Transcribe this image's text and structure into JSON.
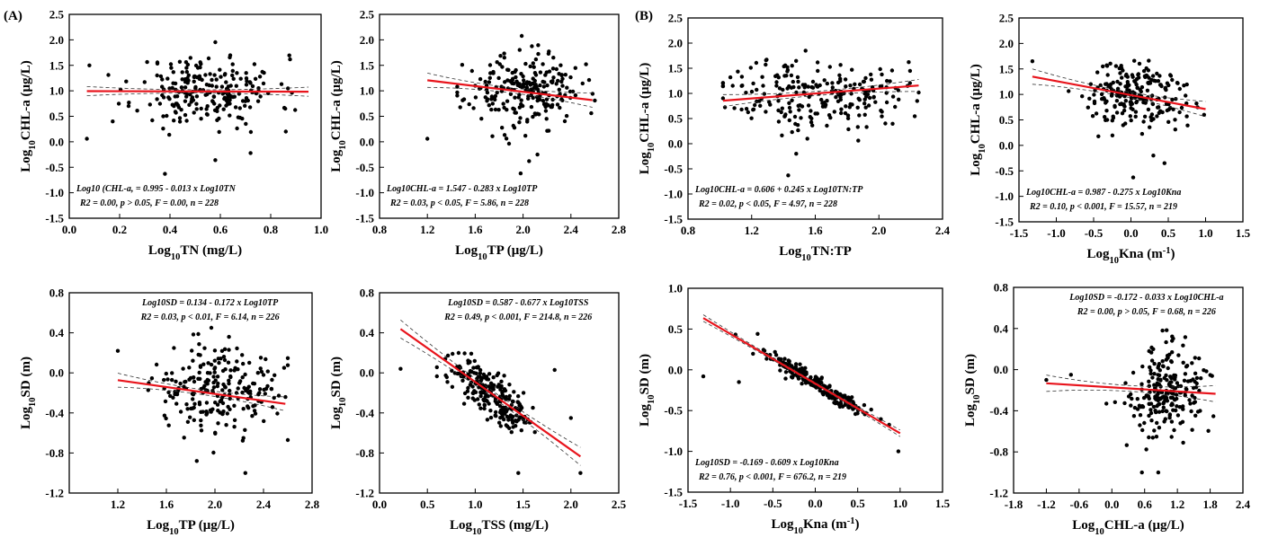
{
  "figure": {
    "panel_tags": [
      "(A)",
      "(B)"
    ]
  },
  "chart_data": [
    {
      "type": "scatter",
      "panel": "(A)",
      "title": "",
      "xlabel": "Log10TN (mg/L)",
      "xlabel_main": "Log",
      "xlabel_sub": "10",
      "xlabel_rest": "TN (mg/L)",
      "ylabel": "Log10CHL-a (μg/L)",
      "ylabel_main": "Log",
      "ylabel_sub": "10",
      "ylabel_rest": "CHL-a (μg/L)",
      "xlim": [
        0.0,
        1.0
      ],
      "ylim": [
        -1.5,
        2.5
      ],
      "xticks": [
        "0.0",
        "0.2",
        "0.4",
        "0.6",
        "0.8",
        "1.0"
      ],
      "yticks": [
        "-1.5",
        "-1.0",
        "-0.5",
        "0.0",
        "0.5",
        "1.0",
        "1.5",
        "2.0",
        "2.5"
      ],
      "x_center": 0.55,
      "x_spread": 0.14,
      "x_min": 0.07,
      "x_max": 0.95,
      "y_center": 1.0,
      "y_spread": 0.35,
      "n": 228,
      "seed": 11,
      "outliers": [
        [
          0.07,
          0.06
        ],
        [
          0.38,
          -0.63
        ],
        [
          0.58,
          -0.36
        ],
        [
          0.72,
          -0.22
        ],
        [
          0.08,
          1.5
        ],
        [
          0.86,
          0.2
        ]
      ],
      "fit": {
        "intercept": 0.995,
        "slope": -0.013,
        "x_range": [
          0.07,
          0.95
        ],
        "band": 0.09
      },
      "equation_line1": "Log10 (CHL-a, = 0.995 - 0.013 x Log10TN",
      "equation_line2": "R2 = 0.00, p > 0.05, F = 0.00, n = 228",
      "eq_pos": "bottom-left"
    },
    {
      "type": "scatter",
      "panel": "(A)",
      "title": "",
      "xlabel": "Log10TP (μg/L)",
      "xlabel_main": "Log",
      "xlabel_sub": "10",
      "xlabel_rest": "TP (μg/L)",
      "ylabel": "Log10CHL-a (μg/L)",
      "ylabel_main": "Log",
      "ylabel_sub": "10",
      "ylabel_rest": "CHL-a (μg/L)",
      "xlim": [
        0.8,
        2.8
      ],
      "ylim": [
        -1.5,
        2.5
      ],
      "xticks": [
        "0.8",
        "1.2",
        "1.6",
        "2.0",
        "2.4",
        "2.8"
      ],
      "yticks": [
        "-1.5",
        "-1.0",
        "-0.5",
        "0.0",
        "0.5",
        "1.0",
        "1.5",
        "2.0",
        "2.5"
      ],
      "x_center": 2.0,
      "x_spread": 0.24,
      "x_min": 1.45,
      "x_max": 2.6,
      "y_center": 1.0,
      "y_spread": 0.35,
      "n": 228,
      "seed": 23,
      "outliers": [
        [
          1.2,
          0.06
        ],
        [
          1.98,
          -0.62
        ],
        [
          2.05,
          -0.38
        ],
        [
          2.12,
          -0.25
        ],
        [
          2.57,
          0.56
        ]
      ],
      "fit": {
        "intercept": 1.547,
        "slope": -0.283,
        "x_range": [
          1.2,
          2.58
        ],
        "band": 0.14
      },
      "equation_line1": "Log10CHL-a = 1.547 - 0.283 x Log10TP",
      "equation_line2": "R2 = 0.03, p < 0.05, F = 5.86, n = 228",
      "eq_pos": "bottom-left"
    },
    {
      "type": "scatter",
      "panel": "(A)",
      "title": "",
      "xlabel": "Log10TN:TP",
      "xlabel_main": "Log",
      "xlabel_sub": "10",
      "xlabel_rest": "TN:TP",
      "ylabel": "Log10CHL-a (μg/L)",
      "ylabel_main": "Log",
      "ylabel_sub": "10",
      "ylabel_rest": "CHL-a (μg/L)",
      "xlim": [
        0.8,
        2.4
      ],
      "ylim": [
        -1.5,
        2.5
      ],
      "xticks": [
        "0.8",
        "1.2",
        "1.6",
        "2.0",
        "2.4"
      ],
      "yticks": [
        "-1.5",
        "-1.0",
        "-0.5",
        "0.0",
        "0.5",
        "1.0",
        "1.5",
        "2.0",
        "2.5"
      ],
      "x_center": 1.6,
      "x_spread": 0.28,
      "x_min": 1.02,
      "x_max": 2.25,
      "y_center": 1.0,
      "y_spread": 0.35,
      "n": 228,
      "seed": 37,
      "outliers": [
        [
          1.43,
          -0.63
        ],
        [
          1.48,
          -0.2
        ],
        [
          1.87,
          0.06
        ],
        [
          1.55,
          0.1
        ]
      ],
      "fit": {
        "intercept": 0.606,
        "slope": 0.245,
        "x_range": [
          1.02,
          2.25
        ],
        "band": 0.12
      },
      "equation_line1": "Log10CHL-a = 0.606 + 0.245 x Log10TN:TP",
      "equation_line2": "R2 = 0.02, p < 0.05, F = 4.97, n = 228",
      "eq_pos": "bottom-left"
    },
    {
      "type": "scatter",
      "panel": "(A)",
      "title": "",
      "xlabel": "Log10Kna (m-1)",
      "xlabel_main": "Log",
      "xlabel_sub": "10",
      "xlabel_rest": "Kna (m",
      "xlabel_sup": "-1",
      "xlabel_end": ")",
      "ylabel": "Log10CHL-a (μg/L)",
      "ylabel_main": "Log",
      "ylabel_sub": "10",
      "ylabel_rest": "CHL-a (μg/L)",
      "xlim": [
        -1.5,
        1.5
      ],
      "ylim": [
        -1.5,
        2.5
      ],
      "xticks": [
        "-1.5",
        "-1.0",
        "-0.5",
        "0.0",
        "0.5",
        "1.0",
        "1.5"
      ],
      "yticks": [
        "-1.5",
        "-1.0",
        "-0.5",
        "0.0",
        "0.5",
        "1.0",
        "1.5",
        "2.0",
        "2.5"
      ],
      "x_center": 0.05,
      "x_spread": 0.35,
      "x_min": -1.1,
      "x_max": 1.0,
      "y_center": 0.97,
      "y_spread": 0.32,
      "n": 219,
      "seed": 51,
      "outliers": [
        [
          -1.32,
          1.65
        ],
        [
          0.03,
          -0.63
        ],
        [
          0.45,
          -0.35
        ],
        [
          0.3,
          -0.2
        ],
        [
          0.98,
          0.6
        ]
      ],
      "fit": {
        "intercept": 0.987,
        "slope": -0.275,
        "x_range": [
          -1.32,
          1.0
        ],
        "band": 0.15
      },
      "equation_line1": "Log10CHL-a = 0.987 - 0.275 x Log10Kna",
      "equation_line2": "R2 = 0.10, p < 0.001, F = 15.57, n = 219",
      "eq_pos": "bottom-left"
    },
    {
      "type": "scatter",
      "panel": "(B)",
      "title": "",
      "xlabel": "Log10TP (μg/L)",
      "xlabel_main": "Log",
      "xlabel_sub": "10",
      "xlabel_rest": "TP (μg/L)",
      "ylabel": "Log10SD (m)",
      "ylabel_main": "Log",
      "ylabel_sub": "10",
      "ylabel_rest": "SD (m)",
      "xlim": [
        0.8,
        2.8
      ],
      "ylim": [
        -1.2,
        0.8
      ],
      "xticks": [
        "1.2",
        "1.6",
        "2.0",
        "2.4",
        "2.8"
      ],
      "yticks": [
        "-1.2",
        "-0.8",
        "-0.4",
        "0.0",
        "0.4",
        "0.8"
      ],
      "x_center": 2.0,
      "x_spread": 0.24,
      "x_min": 1.45,
      "x_max": 2.6,
      "y_center": -0.2,
      "y_spread": 0.22,
      "n": 226,
      "seed": 67,
      "outliers": [
        [
          1.2,
          0.22
        ],
        [
          2.25,
          -1.0
        ],
        [
          1.85,
          -0.88
        ],
        [
          2.57,
          0.05
        ],
        [
          1.97,
          0.45
        ]
      ],
      "fit": {
        "intercept": 0.134,
        "slope": -0.172,
        "x_range": [
          1.2,
          2.58
        ],
        "band": 0.07
      },
      "equation_line1": "Log10SD = 0.134 - 0.172 x Log10TP",
      "equation_line2": "R2 = 0.03, p < 0.01, F = 6.14, n = 226",
      "eq_pos": "top-right"
    },
    {
      "type": "scatter",
      "panel": "(B)",
      "title": "",
      "xlabel": "Log10TSS (mg/L)",
      "xlabel_main": "Log",
      "xlabel_sub": "10",
      "xlabel_rest": "TSS (mg/L)",
      "ylabel": "Log10SD (m)",
      "ylabel_main": "Log",
      "ylabel_sub": "10",
      "ylabel_rest": "SD (m)",
      "xlim": [
        0.0,
        2.5
      ],
      "ylim": [
        -1.2,
        0.8
      ],
      "xticks": [
        "0.0",
        "0.5",
        "1.0",
        "1.5",
        "2.0",
        "2.5"
      ],
      "yticks": [
        "-1.2",
        "-0.8",
        "-0.4",
        "0.0",
        "0.4",
        "0.8"
      ],
      "x_center": 1.15,
      "x_spread": 0.22,
      "x_min": 0.6,
      "x_max": 1.85,
      "y_center": null,
      "y_spread": 0.12,
      "n": 226,
      "seed": 79,
      "outliers": [
        [
          0.22,
          0.04
        ],
        [
          2.1,
          -1.0
        ],
        [
          1.83,
          0.03
        ],
        [
          2.0,
          -0.45
        ],
        [
          1.45,
          -1.0
        ]
      ],
      "fit": {
        "intercept": 0.587,
        "slope": -0.677,
        "x_range": [
          0.22,
          2.1
        ],
        "band": 0.09
      },
      "follow_fit": true,
      "equation_line1": "Log10SD = 0.587 - 0.677 x Log10TSS",
      "equation_line2": "R2 = 0.49, p < 0.001, F = 214.8, n = 226",
      "eq_pos": "top-right"
    },
    {
      "type": "scatter",
      "panel": "(B)",
      "title": "",
      "xlabel": "Log10Kna (m-1)",
      "xlabel_main": "Log",
      "xlabel_sub": "10",
      "xlabel_rest": "Kna (m",
      "xlabel_sup": "-1",
      "xlabel_end": ")",
      "ylabel": "Log10SD (m)",
      "ylabel_main": "Log",
      "ylabel_sub": "10",
      "ylabel_rest": "SD (m)",
      "xlim": [
        -1.5,
        1.5
      ],
      "ylim": [
        -1.5,
        1.0
      ],
      "xticks": [
        "-1.5",
        "-1.0",
        "-0.5",
        "0.0",
        "0.5",
        "1.0",
        "1.5"
      ],
      "yticks": [
        "-1.5",
        "-1.0",
        "-0.5",
        "0.0",
        "0.5",
        "1.0"
      ],
      "x_center": 0.0,
      "x_spread": 0.3,
      "x_min": -1.0,
      "x_max": 1.0,
      "y_center": null,
      "y_spread": 0.05,
      "n": 219,
      "seed": 91,
      "outliers": [
        [
          -1.32,
          -0.08
        ],
        [
          -0.68,
          0.44
        ],
        [
          -0.9,
          -0.15
        ],
        [
          0.98,
          -1.0
        ]
      ],
      "fit": {
        "intercept": -0.169,
        "slope": -0.609,
        "x_range": [
          -1.32,
          1.0
        ],
        "band": 0.04
      },
      "follow_fit": true,
      "equation_line1": "Log10SD = -0.169 - 0.609 x Log10Kna",
      "equation_line2": "R2 = 0.76, p < 0.001, F = 676.2, n = 219",
      "eq_pos": "bottom-left"
    },
    {
      "type": "scatter",
      "panel": "(B)",
      "title": "",
      "xlabel": "Log10CHL-a (μg/L)",
      "xlabel_main": "Log",
      "xlabel_sub": "10",
      "xlabel_rest": "CHL-a (μg/L)",
      "ylabel": "Log10SD (m)",
      "ylabel_main": "Log",
      "ylabel_sub": "10",
      "ylabel_rest": "SD (m)",
      "xlim": [
        -1.8,
        2.4
      ],
      "ylim": [
        -1.2,
        0.8
      ],
      "xticks": [
        "-1.8",
        "-1.2",
        "-0.6",
        "0.0",
        "0.6",
        "1.2",
        "1.8",
        "2.4"
      ],
      "yticks": [
        "-1.2",
        "-0.8",
        "-0.4",
        "0.0",
        "0.4",
        "0.8"
      ],
      "x_center": 1.0,
      "x_spread": 0.35,
      "x_min": 0.05,
      "x_max": 1.9,
      "y_center": -0.2,
      "y_spread": 0.22,
      "n": 226,
      "seed": 103,
      "outliers": [
        [
          -1.2,
          -0.1
        ],
        [
          -0.75,
          -0.05
        ],
        [
          0.55,
          -1.0
        ],
        [
          0.85,
          -1.0
        ],
        [
          -0.1,
          -0.33
        ]
      ],
      "fit": {
        "intercept": -0.172,
        "slope": -0.033,
        "x_range": [
          -1.2,
          1.9
        ],
        "band": 0.08
      },
      "equation_line1": "Log10SD = -0.172 - 0.033 x Log10CHL-a",
      "equation_line2": "R2 = 0.00, p > 0.05, F = 0.68, n = 226",
      "eq_pos": "top-right"
    }
  ]
}
